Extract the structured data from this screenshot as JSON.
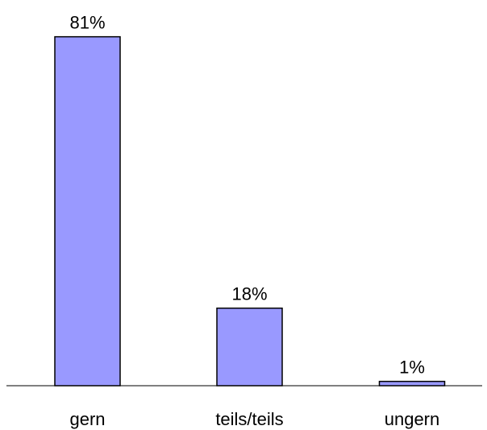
{
  "chart_data": {
    "type": "bar",
    "categories": [
      "gern",
      "teils/teils",
      "ungern"
    ],
    "values": [
      81,
      18,
      1
    ],
    "value_labels": [
      "81%",
      "18%",
      "1%"
    ],
    "color": "#9999ff"
  }
}
